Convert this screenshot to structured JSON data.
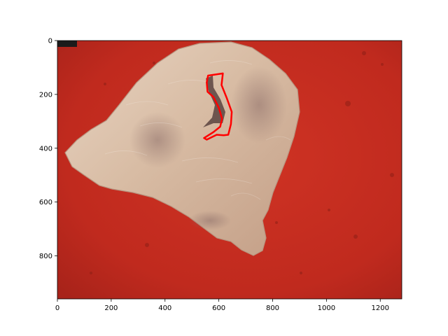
{
  "chart_data": {
    "type": "image",
    "title": "",
    "xlabel": "",
    "ylabel": "",
    "xlim": [
      0,
      1280
    ],
    "ylim": [
      960,
      0
    ],
    "x_ticks": [
      0,
      200,
      400,
      600,
      800,
      1000,
      1200
    ],
    "y_ticks": [
      0,
      200,
      400,
      600,
      800
    ],
    "x_tick_labels": [
      "0",
      "200",
      "400",
      "600",
      "800",
      "1000",
      "1200"
    ],
    "y_tick_labels": [
      "0",
      "200",
      "400",
      "600",
      "800"
    ],
    "grid": false,
    "image": {
      "subject": "raw poultry skin and meat on a red cutting surface",
      "background_color": "#c52a1f",
      "subject_color": "#d9bfa8"
    },
    "annotation": {
      "type": "closed contour",
      "color": "#ff0000",
      "points": [
        [
          560,
          130
        ],
        [
          615,
          122
        ],
        [
          610,
          165
        ],
        [
          630,
          215
        ],
        [
          648,
          265
        ],
        [
          645,
          310
        ],
        [
          635,
          350
        ],
        [
          618,
          352
        ],
        [
          592,
          350
        ],
        [
          555,
          368
        ],
        [
          545,
          362
        ],
        [
          580,
          340
        ],
        [
          605,
          320
        ],
        [
          612,
          290
        ],
        [
          600,
          250
        ],
        [
          580,
          210
        ],
        [
          558,
          190
        ],
        [
          555,
          155
        ]
      ]
    }
  }
}
